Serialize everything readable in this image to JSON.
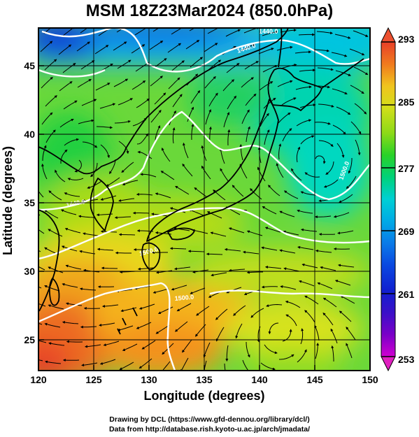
{
  "title": "MSM 18Z23Mar2024 (850.0hPa)",
  "xlabel": "Longitude (degrees)",
  "ylabel": "Latitude  (degrees)",
  "credit_line1": "Drawing by DCL (https://www.gfd-dennou.org/library/dcl/)",
  "credit_line2": "Data from http://database.rish.kyoto-u.ac.jp/arch/jmadata/",
  "chart_data": {
    "type": "heatmap",
    "variable": "temperature with wind streamlines",
    "xlim": [
      120,
      150
    ],
    "ylim": [
      22.5,
      47.5
    ],
    "x_ticks": [
      120,
      125,
      130,
      135,
      140,
      145,
      150
    ],
    "y_ticks": [
      25,
      30,
      35,
      40,
      45
    ],
    "contour_labels": [
      "1440.0",
      "1440.0",
      "1440.0",
      "1500.0",
      "1500.0",
      "1500.0"
    ],
    "colorbar": {
      "min": 253,
      "max": 293,
      "ticks": [
        253,
        261,
        269,
        277,
        285,
        293
      ],
      "colors": [
        "#d000d0",
        "#6a00c8",
        "#1020d0",
        "#0a66e8",
        "#00b4e6",
        "#00d8c8",
        "#00d27a",
        "#22d22a",
        "#8cda18",
        "#d2de1a",
        "#f0c41e",
        "#f49a1c",
        "#f06820",
        "#e84028"
      ]
    }
  }
}
